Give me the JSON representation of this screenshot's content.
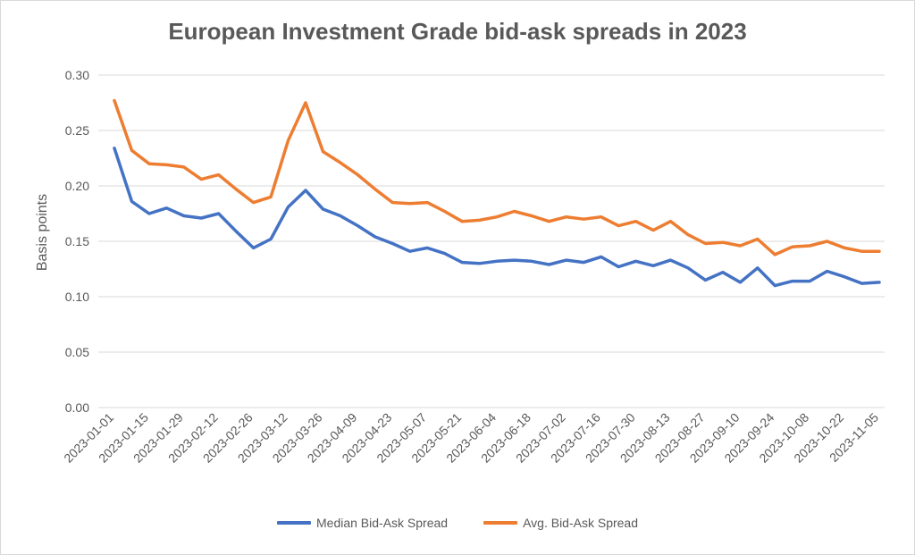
{
  "chart_data": {
    "type": "line",
    "title": "European Investment Grade bid-ask spreads in 2023",
    "xlabel": "",
    "ylabel": "Basis points",
    "ylim": [
      0,
      0.3
    ],
    "yticks": [
      "0.00",
      "0.05",
      "0.10",
      "0.15",
      "0.20",
      "0.25",
      "0.30"
    ],
    "grid": true,
    "legend_position": "bottom",
    "x_tick_labels": [
      "2023-01-01",
      "2023-01-15",
      "2023-01-29",
      "2023-02-12",
      "2023-02-26",
      "2023-03-12",
      "2023-03-26",
      "2023-04-09",
      "2023-04-23",
      "2023-05-07",
      "2023-05-21",
      "2023-06-04",
      "2023-06-18",
      "2023-07-02",
      "2023-07-16",
      "2023-07-30",
      "2023-08-13",
      "2023-08-27",
      "2023-09-10",
      "2023-09-24",
      "2023-10-08",
      "2023-10-22",
      "2023-11-05"
    ],
    "x": [
      "2023-01-01",
      "2023-01-08",
      "2023-01-15",
      "2023-01-22",
      "2023-01-29",
      "2023-02-05",
      "2023-02-12",
      "2023-02-19",
      "2023-02-26",
      "2023-03-05",
      "2023-03-12",
      "2023-03-19",
      "2023-03-26",
      "2023-04-02",
      "2023-04-09",
      "2023-04-16",
      "2023-04-23",
      "2023-04-30",
      "2023-05-07",
      "2023-05-14",
      "2023-05-21",
      "2023-05-28",
      "2023-06-04",
      "2023-06-11",
      "2023-06-18",
      "2023-06-25",
      "2023-07-02",
      "2023-07-09",
      "2023-07-16",
      "2023-07-23",
      "2023-07-30",
      "2023-08-06",
      "2023-08-13",
      "2023-08-20",
      "2023-08-27",
      "2023-09-03",
      "2023-09-10",
      "2023-09-17",
      "2023-09-24",
      "2023-10-01",
      "2023-10-08",
      "2023-10-15",
      "2023-10-22",
      "2023-10-29",
      "2023-11-05"
    ],
    "series": [
      {
        "name": "Median Bid-Ask Spread",
        "color": "#4472C4",
        "values": [
          0.234,
          0.186,
          0.175,
          0.18,
          0.173,
          0.171,
          0.175,
          0.159,
          0.144,
          0.152,
          0.181,
          0.196,
          0.179,
          0.173,
          0.164,
          0.154,
          0.148,
          0.141,
          0.144,
          0.139,
          0.131,
          0.13,
          0.132,
          0.133,
          0.132,
          0.129,
          0.133,
          0.131,
          0.136,
          0.127,
          0.132,
          0.128,
          0.133,
          0.126,
          0.115,
          0.122,
          0.113,
          0.126,
          0.11,
          0.114,
          0.114,
          0.123,
          0.118,
          0.112,
          0.113
        ]
      },
      {
        "name": "Avg. Bid-Ask Spread",
        "color": "#ED7D31",
        "values": [
          0.277,
          0.232,
          0.22,
          0.219,
          0.217,
          0.206,
          0.21,
          0.197,
          0.185,
          0.19,
          0.241,
          0.275,
          0.231,
          0.221,
          0.21,
          0.197,
          0.185,
          0.184,
          0.185,
          0.177,
          0.168,
          0.169,
          0.172,
          0.177,
          0.173,
          0.168,
          0.172,
          0.17,
          0.172,
          0.164,
          0.168,
          0.16,
          0.168,
          0.156,
          0.148,
          0.149,
          0.146,
          0.152,
          0.138,
          0.145,
          0.146,
          0.15,
          0.144,
          0.141,
          0.141
        ]
      }
    ]
  }
}
